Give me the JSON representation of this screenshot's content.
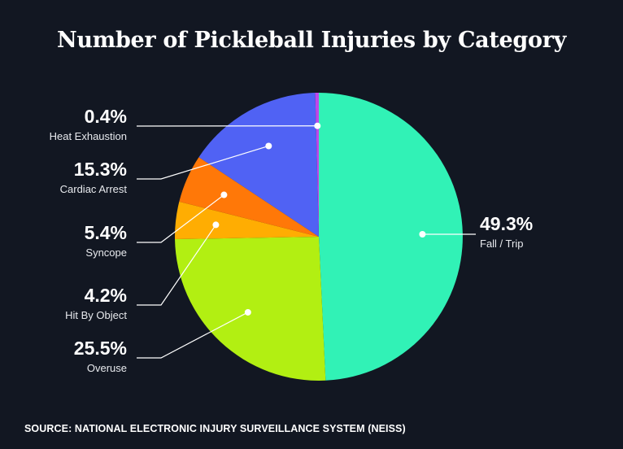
{
  "chart_data": {
    "type": "pie",
    "title": "Number of Pickleball Injuries by Category",
    "source": "SOURCE: NATIONAL ELECTRONIC INJURY SURVEILLANCE SYSTEM (NEISS)",
    "slices": [
      {
        "key": "fall",
        "label": "Fall / Trip",
        "pct_label": "49.3%",
        "value": 49.3,
        "color": "#31f2b6",
        "side": "right"
      },
      {
        "key": "overuse",
        "label": "Overuse",
        "pct_label": "25.5%",
        "value": 25.5,
        "color": "#b2ef12",
        "side": "left"
      },
      {
        "key": "hit",
        "label": "Hit By Object",
        "pct_label": "4.2%",
        "value": 4.2,
        "color": "#ffad02",
        "side": "left"
      },
      {
        "key": "syncope",
        "label": "Syncope",
        "pct_label": "5.4%",
        "value": 5.4,
        "color": "#ff7808",
        "side": "left"
      },
      {
        "key": "cardiac",
        "label": "Cardiac Arrest",
        "pct_label": "15.3%",
        "value": 15.3,
        "color": "#5062f4",
        "side": "left"
      },
      {
        "key": "heat",
        "label": "Heat Exhaustion",
        "pct_label": "0.4%",
        "value": 0.4,
        "color": "#c047ea",
        "side": "left"
      }
    ]
  }
}
